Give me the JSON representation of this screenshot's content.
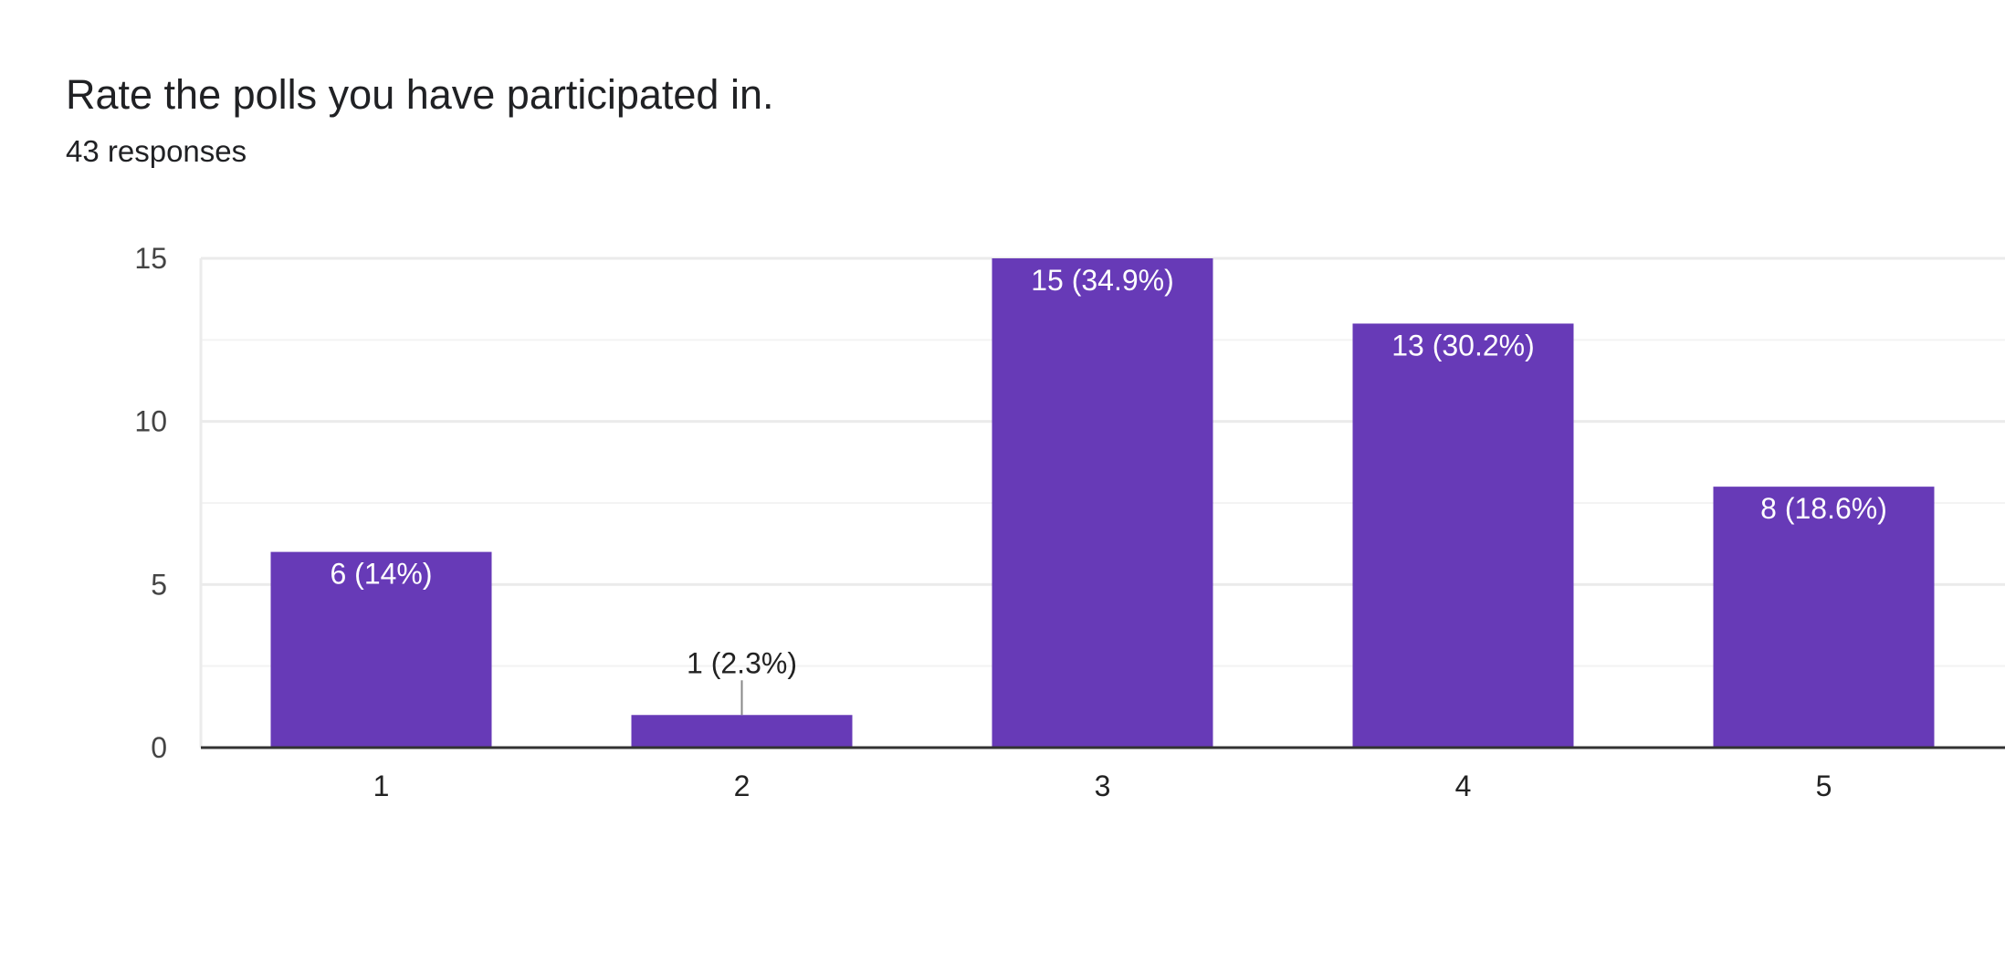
{
  "header": {
    "title": "Rate the polls you have participated in.",
    "responses": "43 responses"
  },
  "colors": {
    "bar": "#673AB7",
    "grid": "#EBEBEB",
    "minor_grid": "#F3F3F3",
    "axis": "#333333",
    "inside_label": "#FFFFFF",
    "outside_label": "#222222"
  },
  "chart_data": {
    "type": "bar",
    "categories": [
      "1",
      "2",
      "3",
      "4",
      "5"
    ],
    "values": [
      6,
      1,
      15,
      13,
      8
    ],
    "labels": [
      "6 (14%)",
      "1 (2.3%)",
      "15 (34.9%)",
      "13 (30.2%)",
      "8 (18.6%)"
    ],
    "yticks": [
      0,
      5,
      10,
      15
    ],
    "ylim": [
      0,
      15
    ],
    "grid": true,
    "legend": "none"
  }
}
